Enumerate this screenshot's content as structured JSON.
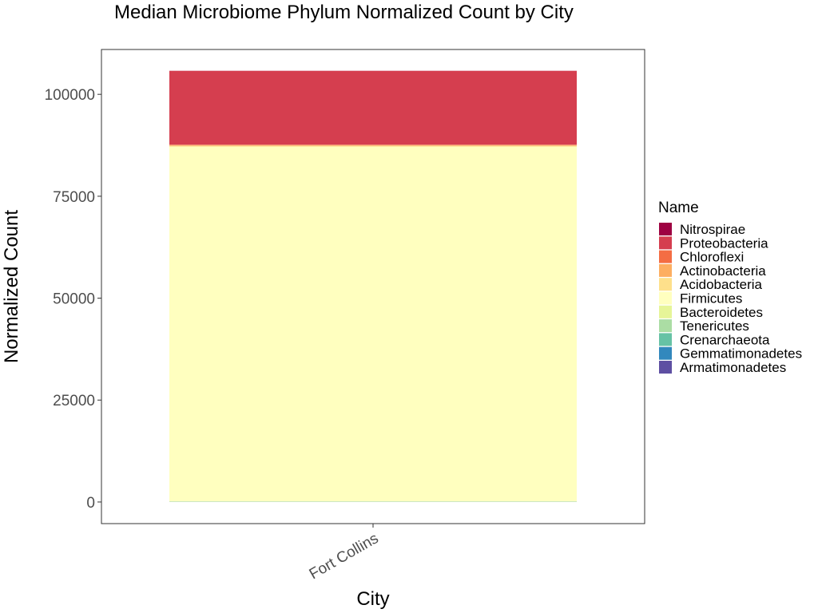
{
  "chart_data": {
    "type": "bar",
    "stacked": true,
    "title": "Median Microbiome Phylum Normalized Count by City",
    "xlabel": "City",
    "ylabel": "Normalized Count",
    "categories": [
      "Fort Collins"
    ],
    "ylim": [
      -5300,
      111000
    ],
    "yticks": [
      0,
      25000,
      50000,
      75000,
      100000
    ],
    "ytick_labels": [
      "0",
      "25000",
      "50000",
      "75000",
      "100000"
    ],
    "grid": false,
    "legend": {
      "title": "Name",
      "position": "right",
      "entries": [
        "Nitrospirae",
        "Proteobacteria",
        "Chloroflexi",
        "Actinobacteria",
        "Acidobacteria",
        "Firmicutes",
        "Bacteroidetes",
        "Tenericutes",
        "Crenarchaeota",
        "Gemmatimonadetes",
        "Armatimonadetes"
      ]
    },
    "series": [
      {
        "name": "Armatimonadetes",
        "color": "#5E4FA2",
        "values": [
          15
        ]
      },
      {
        "name": "Gemmatimonadetes",
        "color": "#3288BD",
        "values": [
          20
        ]
      },
      {
        "name": "Crenarchaeota",
        "color": "#66C2A5",
        "values": [
          25
        ]
      },
      {
        "name": "Tenericutes",
        "color": "#ABDDA4",
        "values": [
          40
        ]
      },
      {
        "name": "Bacteroidetes",
        "color": "#E6F598",
        "values": [
          60
        ]
      },
      {
        "name": "Firmicutes",
        "color": "#FFFFBF",
        "values": [
          87000
        ]
      },
      {
        "name": "Acidobacteria",
        "color": "#FEE08B",
        "values": [
          200
        ]
      },
      {
        "name": "Actinobacteria",
        "color": "#FDAE61",
        "values": [
          200
        ]
      },
      {
        "name": "Chloroflexi",
        "color": "#F46D43",
        "values": [
          100
        ]
      },
      {
        "name": "Proteobacteria",
        "color": "#D53E4F",
        "values": [
          18100
        ]
      },
      {
        "name": "Nitrospirae",
        "color": "#9E0142",
        "values": [
          20
        ]
      }
    ]
  }
}
